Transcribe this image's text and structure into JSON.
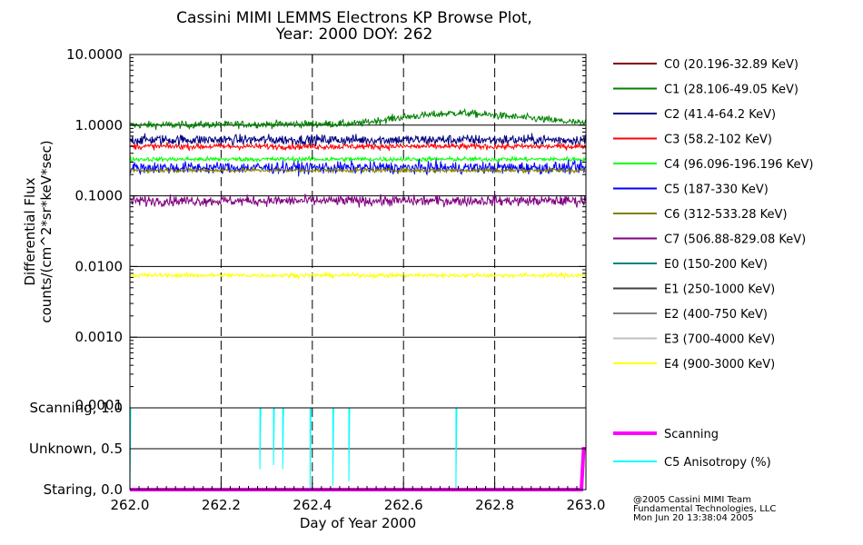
{
  "chart_data": [
    {
      "type": "line",
      "title": "Cassini MIMI LEMMS Electrons KP Browse Plot,",
      "subtitle": "Year: 2000 DOY: 262",
      "ylabel_line1": "Differential Flux",
      "ylabel_line2": "counts/(cm^2*sr*keV*sec)",
      "ylabel_line2_display": "counts/(cm^2*sr*keV*sec)",
      "yscale": "log",
      "ylim": [
        0.0001,
        10.0
      ],
      "yticks": [
        0.0001,
        0.001,
        0.01,
        0.1,
        1.0,
        10.0
      ],
      "ytick_labels": [
        "0.0001",
        "0.0010",
        "0.0100",
        "0.1000",
        "1.0000",
        "10.0000"
      ],
      "xlim": [
        262.0,
        263.0
      ],
      "grid": true,
      "legend_placement": "right",
      "series": [
        {
          "name": "C0 (20.196-32.89 KeV)",
          "color": "#800000",
          "level": null,
          "noise": 0
        },
        {
          "name": "C1 (28.106-49.05 KeV)",
          "color": "#008000",
          "level": 1.0,
          "noise": 0.05,
          "trend": [
            [
              262.0,
              1.0
            ],
            [
              262.5,
              1.05
            ],
            [
              262.6,
              1.3
            ],
            [
              262.72,
              1.5
            ],
            [
              262.85,
              1.3
            ],
            [
              263.0,
              1.05
            ]
          ]
        },
        {
          "name": "C2 (41.4-64.2 KeV)",
          "color": "#000080",
          "level": 0.62,
          "noise": 0.07
        },
        {
          "name": "C3 (58.2-102 KeV)",
          "color": "#ff0000",
          "level": 0.5,
          "noise": 0.04
        },
        {
          "name": "C4 (96.096-196.196 KeV)",
          "color": "#00ff00",
          "level": 0.33,
          "noise": 0.03
        },
        {
          "name": "C5 (187-330 KeV)",
          "color": "#0000ff",
          "level": 0.25,
          "noise": 0.08
        },
        {
          "name": "C6 (312-533.28 KeV)",
          "color": "#808000",
          "level": 0.23,
          "noise": 0.03
        },
        {
          "name": "C7 (506.88-829.08 KeV)",
          "color": "#800080",
          "level": 0.085,
          "noise": 0.07
        },
        {
          "name": "E0 (150-200 KeV)",
          "color": "#008080",
          "level": null,
          "noise": 0
        },
        {
          "name": "E1 (250-1000 KeV)",
          "color": "#404040",
          "level": null,
          "noise": 0
        },
        {
          "name": "E2 (400-750 KeV)",
          "color": "#808080",
          "level": null,
          "noise": 0
        },
        {
          "name": "E3 (700-4000 KeV)",
          "color": "#c0c0c0",
          "level": null,
          "noise": 0
        },
        {
          "name": "E4 (900-3000 KeV)",
          "color": "#ffff00",
          "level": 0.0075,
          "noise": 0.03
        }
      ]
    },
    {
      "type": "line",
      "xlabel": "Day of Year 2000",
      "xlim": [
        262.0,
        263.0
      ],
      "xticks": [
        262.0,
        262.2,
        262.4,
        262.6,
        262.8,
        263.0
      ],
      "xtick_labels": [
        "262.0",
        "262.2",
        "262.4",
        "262.6",
        "262.8",
        "263.0"
      ],
      "ylim": [
        0.0,
        1.0
      ],
      "yticks": [
        0.0,
        0.5,
        1.0
      ],
      "ytick_labels": [
        "Staring, 0.0",
        "Unknown, 0.5",
        "Scanning, 1.0"
      ],
      "grid": true,
      "legend_placement": "right",
      "series": [
        {
          "name": "Scanning",
          "color": "#ff00ff",
          "points": [
            [
              262.0,
              0.0
            ],
            [
              262.99,
              0.0
            ],
            [
              262.995,
              0.5
            ],
            [
              263.0,
              0.5
            ]
          ]
        },
        {
          "name": "C5 Anisotropy (%)",
          "color": "#00ffff",
          "baseline": 1.0,
          "dips": [
            [
              262.0,
              0.0
            ],
            [
              262.285,
              0.25
            ],
            [
              262.315,
              0.3
            ],
            [
              262.335,
              0.25
            ],
            [
              262.395,
              0.0
            ],
            [
              262.445,
              0.05
            ],
            [
              262.48,
              0.1
            ],
            [
              262.715,
              0.0
            ]
          ]
        }
      ]
    }
  ],
  "footer": {
    "line1": "@2005 Cassini MIMI Team",
    "line2": "Fundamental Technologies, LLC",
    "line3": "Mon Jun 20 13:38:04 2005"
  }
}
